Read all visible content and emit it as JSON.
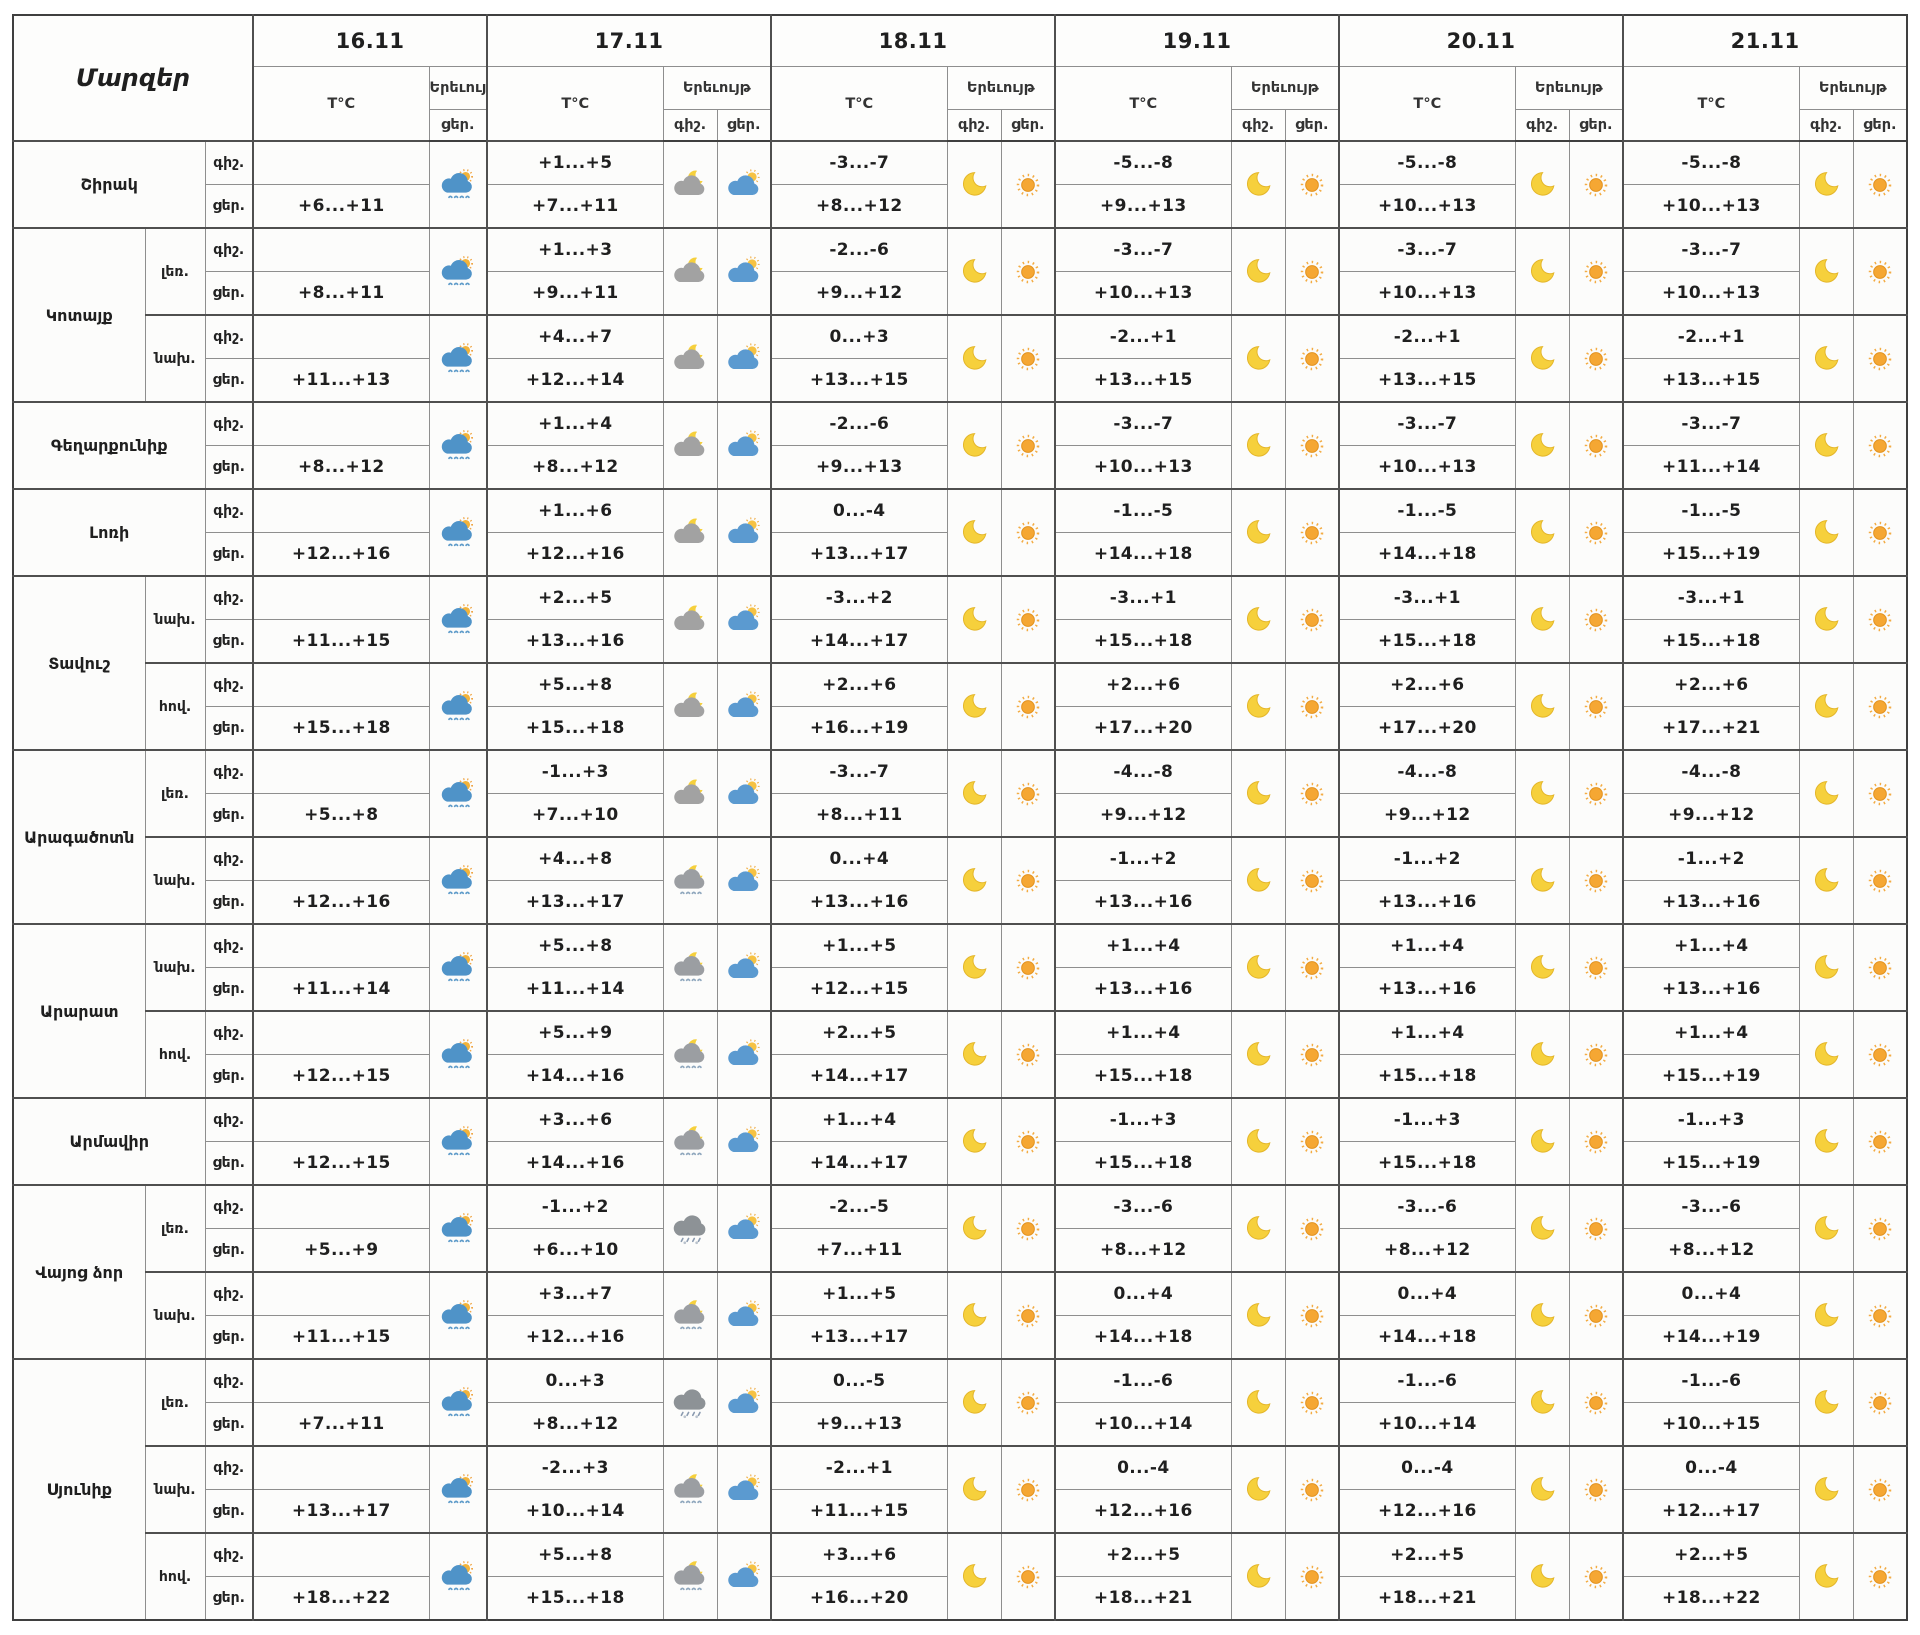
{
  "table": {
    "region_header": "Մարզեր",
    "temp_header": "T°C",
    "phenomenon_header": "Երեւույթ",
    "night_label": "գիշ.",
    "day_label": "ցեր.",
    "dates": [
      "16.11",
      "17.11",
      "18.11",
      "19.11",
      "20.11",
      "21.11"
    ],
    "colors": {
      "sun": "#f5a733",
      "moon": "#f6d03c",
      "cloud_blue": "#4f93c8",
      "cloud_gray": "#9b9ea2",
      "rain": "#8fa7bd",
      "text": "#1f1f1f",
      "grid": "#8e8e8e"
    },
    "regions": [
      {
        "name": "Շիրակ",
        "zones": [
          {
            "zone": "",
            "night_temps": [
              "",
              "+1...+5",
              "-3...-7",
              "-5...-8",
              "-5...-8",
              "-5...-8"
            ],
            "day_temps": [
              "+6...+11",
              "+7...+11",
              "+8...+12",
              "+9...+13",
              "+10...+13",
              "+10...+13"
            ],
            "night_icons": [
              "cloud-moon-icon",
              "moon-icon",
              "moon-icon",
              "moon-icon",
              "moon-icon"
            ],
            "day_icons": [
              "sun-cloud-rain-icon",
              "cloud-sun-icon",
              "sun-icon",
              "sun-icon",
              "sun-icon",
              "sun-icon"
            ]
          }
        ]
      },
      {
        "name": "Կոտայք",
        "zones": [
          {
            "zone": "լեռ.",
            "night_temps": [
              "",
              "+1...+3",
              "-2...-6",
              "-3...-7",
              "-3...-7",
              "-3...-7"
            ],
            "day_temps": [
              "+8...+11",
              "+9...+11",
              "+9...+12",
              "+10...+13",
              "+10...+13",
              "+10...+13"
            ],
            "night_icons": [
              "cloud-moon-icon",
              "moon-icon",
              "moon-icon",
              "moon-icon",
              "moon-icon"
            ],
            "day_icons": [
              "sun-cloud-rain-icon",
              "cloud-sun-icon",
              "sun-icon",
              "sun-icon",
              "sun-icon",
              "sun-icon"
            ]
          },
          {
            "zone": "նախ.",
            "night_temps": [
              "",
              "+4...+7",
              "0...+3",
              "-2...+1",
              "-2...+1",
              "-2...+1"
            ],
            "day_temps": [
              "+11...+13",
              "+12...+14",
              "+13...+15",
              "+13...+15",
              "+13...+15",
              "+13...+15"
            ],
            "night_icons": [
              "cloud-moon-icon",
              "moon-icon",
              "moon-icon",
              "moon-icon",
              "moon-icon"
            ],
            "day_icons": [
              "sun-cloud-rain-icon",
              "cloud-sun-icon",
              "sun-icon",
              "sun-icon",
              "sun-icon",
              "sun-icon"
            ]
          }
        ]
      },
      {
        "name": "Գեղարքունիք",
        "zones": [
          {
            "zone": "",
            "night_temps": [
              "",
              "+1...+4",
              "-2...-6",
              "-3...-7",
              "-3...-7",
              "-3...-7"
            ],
            "day_temps": [
              "+8...+12",
              "+8...+12",
              "+9...+13",
              "+10...+13",
              "+10...+13",
              "+11...+14"
            ],
            "night_icons": [
              "cloud-moon-icon",
              "moon-icon",
              "moon-icon",
              "moon-icon",
              "moon-icon"
            ],
            "day_icons": [
              "sun-cloud-rain-icon",
              "cloud-sun-icon",
              "sun-icon",
              "sun-icon",
              "sun-icon",
              "sun-icon"
            ]
          }
        ]
      },
      {
        "name": "Լոռի",
        "zones": [
          {
            "zone": "",
            "night_temps": [
              "",
              "+1...+6",
              "0...-4",
              "-1...-5",
              "-1...-5",
              "-1...-5"
            ],
            "day_temps": [
              "+12...+16",
              "+12...+16",
              "+13...+17",
              "+14...+18",
              "+14...+18",
              "+15...+19"
            ],
            "night_icons": [
              "cloud-moon-icon",
              "moon-icon",
              "moon-icon",
              "moon-icon",
              "moon-icon"
            ],
            "day_icons": [
              "sun-cloud-rain-icon",
              "cloud-sun-icon",
              "sun-icon",
              "sun-icon",
              "sun-icon",
              "sun-icon"
            ]
          }
        ]
      },
      {
        "name": "Տավուշ",
        "zones": [
          {
            "zone": "նախ.",
            "night_temps": [
              "",
              "+2...+5",
              "-3...+2",
              "-3...+1",
              "-3...+1",
              "-3...+1"
            ],
            "day_temps": [
              "+11...+15",
              "+13...+16",
              "+14...+17",
              "+15...+18",
              "+15...+18",
              "+15...+18"
            ],
            "night_icons": [
              "cloud-moon-icon",
              "moon-icon",
              "moon-icon",
              "moon-icon",
              "moon-icon"
            ],
            "day_icons": [
              "sun-cloud-rain-icon",
              "cloud-sun-icon",
              "sun-icon",
              "sun-icon",
              "sun-icon",
              "sun-icon"
            ]
          },
          {
            "zone": "հով.",
            "night_temps": [
              "",
              "+5...+8",
              "+2...+6",
              "+2...+6",
              "+2...+6",
              "+2...+6"
            ],
            "day_temps": [
              "+15...+18",
              "+15...+18",
              "+16...+19",
              "+17...+20",
              "+17...+20",
              "+17...+21"
            ],
            "night_icons": [
              "cloud-moon-icon",
              "moon-icon",
              "moon-icon",
              "moon-icon",
              "moon-icon"
            ],
            "day_icons": [
              "sun-cloud-rain-icon",
              "cloud-sun-icon",
              "sun-icon",
              "sun-icon",
              "sun-icon",
              "sun-icon"
            ]
          }
        ]
      },
      {
        "name": "Արագածոտն",
        "zones": [
          {
            "zone": "լեռ.",
            "night_temps": [
              "",
              "-1...+3",
              "-3...-7",
              "-4...-8",
              "-4...-8",
              "-4...-8"
            ],
            "day_temps": [
              "+5...+8",
              "+7...+10",
              "+8...+11",
              "+9...+12",
              "+9...+12",
              "+9...+12"
            ],
            "night_icons": [
              "cloud-moon-icon",
              "moon-icon",
              "moon-icon",
              "moon-icon",
              "moon-icon"
            ],
            "day_icons": [
              "sun-cloud-rain-icon",
              "cloud-sun-icon",
              "sun-icon",
              "sun-icon",
              "sun-icon",
              "sun-icon"
            ]
          },
          {
            "zone": "նախ.",
            "night_temps": [
              "",
              "+4...+8",
              "0...+4",
              "-1...+2",
              "-1...+2",
              "-1...+2"
            ],
            "day_temps": [
              "+12...+16",
              "+13...+17",
              "+13...+16",
              "+13...+16",
              "+13...+16",
              "+13...+16"
            ],
            "night_icons": [
              "cloud-moon-rain-icon",
              "moon-icon",
              "moon-icon",
              "moon-icon",
              "moon-icon"
            ],
            "day_icons": [
              "sun-cloud-rain-icon",
              "cloud-sun-icon",
              "sun-icon",
              "sun-icon",
              "sun-icon",
              "sun-icon"
            ]
          }
        ]
      },
      {
        "name": "Արարատ",
        "zones": [
          {
            "zone": "նախ.",
            "night_temps": [
              "",
              "+5...+8",
              "+1...+5",
              "+1...+4",
              "+1...+4",
              "+1...+4"
            ],
            "day_temps": [
              "+11...+14",
              "+11...+14",
              "+12...+15",
              "+13...+16",
              "+13...+16",
              "+13...+16"
            ],
            "night_icons": [
              "cloud-moon-rain-icon",
              "moon-icon",
              "moon-icon",
              "moon-icon",
              "moon-icon"
            ],
            "day_icons": [
              "sun-cloud-rain-icon",
              "cloud-sun-icon",
              "sun-icon",
              "sun-icon",
              "sun-icon",
              "sun-icon"
            ]
          },
          {
            "zone": "հով.",
            "night_temps": [
              "",
              "+5...+9",
              "+2...+5",
              "+1...+4",
              "+1...+4",
              "+1...+4"
            ],
            "day_temps": [
              "+12...+15",
              "+14...+16",
              "+14...+17",
              "+15...+18",
              "+15...+18",
              "+15...+19"
            ],
            "night_icons": [
              "cloud-moon-rain-icon",
              "moon-icon",
              "moon-icon",
              "moon-icon",
              "moon-icon"
            ],
            "day_icons": [
              "sun-cloud-rain-icon",
              "cloud-sun-icon",
              "sun-icon",
              "sun-icon",
              "sun-icon",
              "sun-icon"
            ]
          }
        ]
      },
      {
        "name": "Արմավիր",
        "zones": [
          {
            "zone": "",
            "night_temps": [
              "",
              "+3...+6",
              "+1...+4",
              "-1...+3",
              "-1...+3",
              "-1...+3"
            ],
            "day_temps": [
              "+12...+15",
              "+14...+16",
              "+14...+17",
              "+15...+18",
              "+15...+18",
              "+15...+19"
            ],
            "night_icons": [
              "cloud-moon-rain-icon",
              "moon-icon",
              "moon-icon",
              "moon-icon",
              "moon-icon"
            ],
            "day_icons": [
              "sun-cloud-rain-icon",
              "cloud-sun-icon",
              "sun-icon",
              "sun-icon",
              "sun-icon",
              "sun-icon"
            ]
          }
        ]
      },
      {
        "name": "Վայոց ձոր",
        "zones": [
          {
            "zone": "լեռ.",
            "night_temps": [
              "",
              "-1...+2",
              "-2...-5",
              "-3...-6",
              "-3...-6",
              "-3...-6"
            ],
            "day_temps": [
              "+5...+9",
              "+6...+10",
              "+7...+11",
              "+8...+12",
              "+8...+12",
              "+8...+12"
            ],
            "night_icons": [
              "cloud-rain-snow-icon",
              "moon-icon",
              "moon-icon",
              "moon-icon",
              "moon-icon"
            ],
            "day_icons": [
              "sun-cloud-rain-icon",
              "cloud-sun-icon",
              "sun-icon",
              "sun-icon",
              "sun-icon",
              "sun-icon"
            ]
          },
          {
            "zone": "նախ.",
            "night_temps": [
              "",
              "+3...+7",
              "+1...+5",
              "0...+4",
              "0...+4",
              "0...+4"
            ],
            "day_temps": [
              "+11...+15",
              "+12...+16",
              "+13...+17",
              "+14...+18",
              "+14...+18",
              "+14...+19"
            ],
            "night_icons": [
              "cloud-moon-rain-icon",
              "moon-icon",
              "moon-icon",
              "moon-icon",
              "moon-icon"
            ],
            "day_icons": [
              "sun-cloud-rain-icon",
              "cloud-sun-icon",
              "sun-icon",
              "sun-icon",
              "sun-icon",
              "sun-icon"
            ]
          }
        ]
      },
      {
        "name": "Սյունիք",
        "zones": [
          {
            "zone": "լեռ.",
            "night_temps": [
              "",
              "0...+3",
              "0...-5",
              "-1...-6",
              "-1...-6",
              "-1...-6"
            ],
            "day_temps": [
              "+7...+11",
              "+8...+12",
              "+9...+13",
              "+10...+14",
              "+10...+14",
              "+10...+15"
            ],
            "night_icons": [
              "cloud-rain-snow-icon",
              "moon-icon",
              "moon-icon",
              "moon-icon",
              "moon-icon"
            ],
            "day_icons": [
              "sun-cloud-rain-icon",
              "cloud-sun-icon",
              "sun-icon",
              "sun-icon",
              "sun-icon",
              "sun-icon"
            ]
          },
          {
            "zone": "նախ.",
            "night_temps": [
              "",
              "-2...+3",
              "-2...+1",
              "0...-4",
              "0...-4",
              "0...-4"
            ],
            "day_temps": [
              "+13...+17",
              "+10...+14",
              "+11...+15",
              "+12...+16",
              "+12...+16",
              "+12...+17"
            ],
            "night_icons": [
              "cloud-moon-rain-icon",
              "moon-icon",
              "moon-icon",
              "moon-icon",
              "moon-icon"
            ],
            "day_icons": [
              "sun-cloud-rain-icon",
              "cloud-sun-icon",
              "sun-icon",
              "sun-icon",
              "sun-icon",
              "sun-icon"
            ]
          },
          {
            "zone": "հով.",
            "night_temps": [
              "",
              "+5...+8",
              "+3...+6",
              "+2...+5",
              "+2...+5",
              "+2...+5"
            ],
            "day_temps": [
              "+18...+22",
              "+15...+18",
              "+16...+20",
              "+18...+21",
              "+18...+21",
              "+18...+22"
            ],
            "night_icons": [
              "cloud-moon-rain-icon",
              "moon-icon",
              "moon-icon",
              "moon-icon",
              "moon-icon"
            ],
            "day_icons": [
              "sun-cloud-rain-icon",
              "cloud-sun-icon",
              "sun-icon",
              "sun-icon",
              "sun-icon",
              "sun-icon"
            ]
          }
        ]
      }
    ]
  }
}
